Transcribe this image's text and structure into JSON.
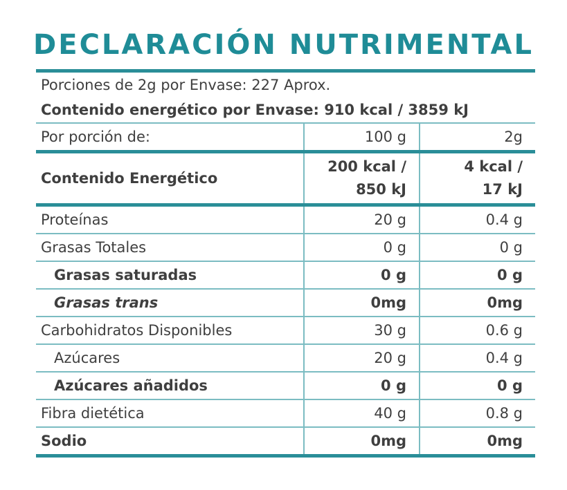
{
  "title": "DECLARACIÓN NUTRIMENTAL",
  "header": {
    "portions": "Porciones de 2g por Envase: 227 Aprox.",
    "energy": "Contenido energético por Envase: 910 kcal / 3859 kJ"
  },
  "table": {
    "portion_row": [
      "Por porción de:",
      "100 g",
      "2g"
    ],
    "energy_row": {
      "label": "Contenido Energético",
      "col1": [
        "200 kcal /",
        "850 kJ"
      ],
      "col2": [
        "4 kcal /",
        "17 kJ"
      ]
    },
    "rows": [
      [
        "Proteínas",
        "20 g",
        "0.4 g"
      ],
      [
        "Grasas Totales",
        "0 g",
        "0 g"
      ],
      [
        "Grasas saturadas",
        "0 g",
        "0 g"
      ],
      [
        "Grasas trans",
        "0mg",
        "0mg"
      ],
      [
        "Carbohidratos Disponibles",
        "30 g",
        "0.6 g"
      ],
      [
        "Azúcares",
        "20 g",
        "0.4 g"
      ],
      [
        "Azúcares añadidos",
        "0 g",
        "0 g"
      ],
      [
        "Fibra dietética",
        "40 g",
        "0.8 g"
      ],
      [
        "Sodio",
        "0mg",
        "0mg"
      ]
    ]
  }
}
